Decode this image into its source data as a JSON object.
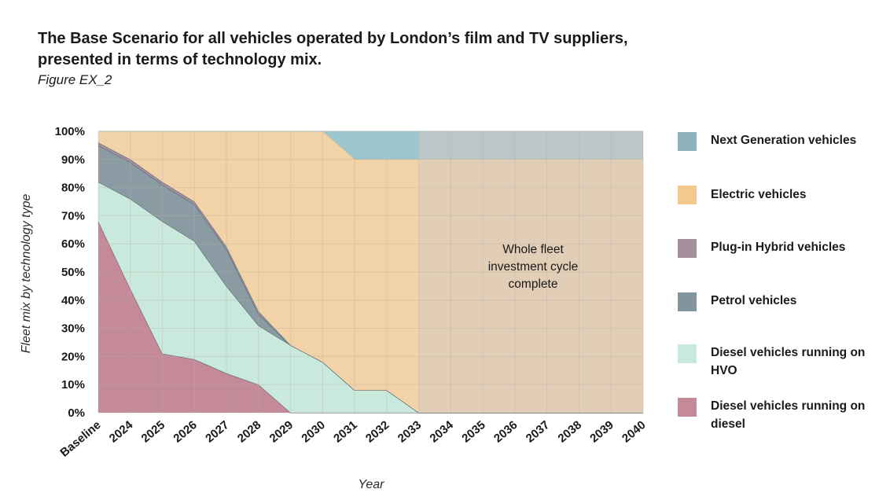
{
  "header": {
    "title": "The Base Scenario for all vehicles operated by London’s film and TV suppliers, presented in terms of technology mix.",
    "figure_label": "Figure EX_2"
  },
  "chart_data": {
    "type": "area",
    "stacked": true,
    "title": "The Base Scenario for all vehicles operated by London’s film and TV suppliers, presented in terms of technology mix.",
    "xlabel": "Year",
    "ylabel": "Fleet mix by technology type",
    "categories": [
      "Baseline",
      "2024",
      "2025",
      "2026",
      "2027",
      "2028",
      "2029",
      "2030",
      "2031",
      "2032",
      "2033",
      "2034",
      "2035",
      "2036",
      "2037",
      "2038",
      "2039",
      "2040"
    ],
    "y_ticks": [
      "0%",
      "10%",
      "20%",
      "30%",
      "40%",
      "50%",
      "60%",
      "70%",
      "80%",
      "90%",
      "100%"
    ],
    "ylim": [
      0,
      100
    ],
    "grid": true,
    "series": [
      {
        "name": "Diesel vehicles running on diesel",
        "color": "#c48a9a",
        "values": [
          68,
          44,
          21,
          19,
          14,
          10,
          0,
          0,
          0,
          0,
          0,
          0,
          0,
          0,
          0,
          0,
          0,
          0
        ]
      },
      {
        "name": "Diesel vehicles running on HVO",
        "color": "#c9e9dc",
        "values": [
          14,
          32,
          47,
          42,
          31,
          21,
          24,
          18,
          8,
          8,
          0,
          0,
          0,
          0,
          0,
          0,
          0,
          0
        ]
      },
      {
        "name": "Petrol vehicles",
        "color": "#8a9ba4",
        "values": [
          13,
          13,
          13,
          13,
          13,
          4,
          0,
          0,
          0,
          0,
          0,
          0,
          0,
          0,
          0,
          0,
          0,
          0
        ]
      },
      {
        "name": "Plug-in Hybrid vehicles",
        "color": "#a58f9c",
        "values": [
          1,
          1,
          1,
          1,
          1,
          1,
          0,
          0,
          0,
          0,
          0,
          0,
          0,
          0,
          0,
          0,
          0,
          0
        ]
      },
      {
        "name": "Electric vehicles",
        "color": "#f2d2a7",
        "values": [
          4,
          10,
          18,
          25,
          41,
          64,
          76,
          82,
          82,
          82,
          90,
          90,
          90,
          90,
          90,
          90,
          90,
          90
        ]
      },
      {
        "name": "Next Generation vehicles",
        "color": "#9cc5cd",
        "values": [
          0,
          0,
          0,
          0,
          0,
          0,
          0,
          0,
          10,
          10,
          10,
          10,
          10,
          10,
          10,
          10,
          10,
          10
        ]
      }
    ],
    "annotation": {
      "lines": [
        "Whole fleet",
        "investment cycle",
        "complete"
      ],
      "shaded_from": "2033",
      "shaded_to": "2040",
      "shade_color": "#d6c9c2"
    },
    "legend_position": "right"
  },
  "legend": [
    {
      "label": "Next Generation vehicles",
      "color": "#8fb2bd"
    },
    {
      "label": "Electric vehicles",
      "color": "#f2c98f"
    },
    {
      "label": "Plug-in Hybrid vehicles",
      "color": "#a58f9c"
    },
    {
      "label": "Petrol vehicles",
      "color": "#82959e"
    },
    {
      "label": "Diesel vehicles running on HVO",
      "color": "#c9e9dc"
    },
    {
      "label": "Diesel vehicles running on diesel",
      "color": "#c48a9a"
    }
  ]
}
